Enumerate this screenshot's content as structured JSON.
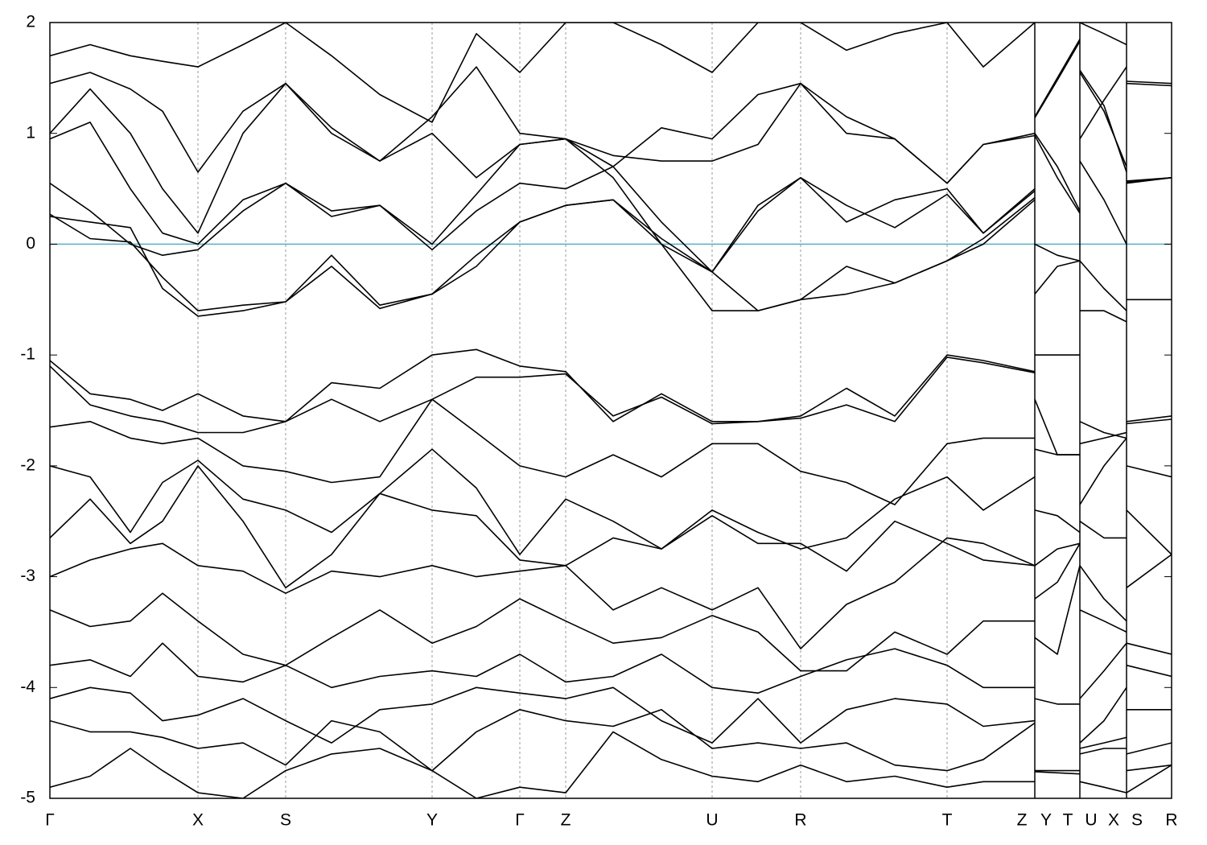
{
  "chart_data": {
    "type": "line",
    "x": [
      0,
      0.5,
      1.0,
      1.4,
      1.84,
      2.4,
      2.93,
      3.5,
      4.1,
      4.75,
      5.3,
      5.84,
      6.41,
      7.0,
      7.6,
      8.23,
      8.8,
      9.33,
      9.9,
      10.5,
      11.15,
      11.6,
      12.24,
      12.24,
      12.24,
      12.52,
      12.8,
      12.8,
      12.8,
      13.1,
      13.38,
      13.38,
      13.38,
      13.94
    ],
    "xlim": [
      0,
      13.94
    ],
    "xticks": [
      {
        "value": 0,
        "label": "Γ"
      },
      {
        "value": 1.84,
        "label": "X"
      },
      {
        "value": 2.93,
        "label": "S"
      },
      {
        "value": 4.75,
        "label": "Y"
      },
      {
        "value": 5.84,
        "label": "Γ"
      },
      {
        "value": 6.41,
        "label": "Z"
      },
      {
        "value": 8.23,
        "label": "U"
      },
      {
        "value": 9.33,
        "label": "R"
      },
      {
        "value": 11.15,
        "label": "T"
      },
      {
        "value": 12.08,
        "label": "Z"
      },
      {
        "value": 12.38,
        "label": "Y"
      },
      {
        "value": 12.65,
        "label": "T"
      },
      {
        "value": 12.94,
        "label": "U"
      },
      {
        "value": 13.22,
        "label": "X"
      },
      {
        "value": 13.51,
        "label": "S"
      },
      {
        "value": 13.94,
        "label": "R"
      }
    ],
    "breaks": [
      12.24,
      12.8,
      13.38
    ],
    "ylim": [
      -5,
      2
    ],
    "yticks": [
      2,
      1,
      0,
      -1,
      -2,
      -3,
      -4,
      -5
    ],
    "grid": true,
    "reference_line": {
      "value": 0,
      "color": "#56afc8"
    },
    "series": [
      {
        "color": "#000000",
        "values": [
          0.27,
          0.05,
          0.02,
          -0.3,
          -0.6,
          -0.55,
          -0.52,
          -0.1,
          -0.55,
          -0.45,
          -0.1,
          0.2,
          0.35,
          0.4,
          0.05,
          -0.25,
          -0.6,
          -0.5,
          -0.2,
          -0.35,
          -0.15,
          0.0,
          0.4,
          null,
          0.0,
          -0.1,
          -0.15,
          null,
          -0.6,
          -0.6,
          -0.7,
          null,
          -0.5,
          -0.5
        ]
      },
      {
        "color": "#000000",
        "values": [
          0.25,
          0.2,
          0.15,
          -0.4,
          -0.65,
          -0.6,
          -0.52,
          -0.2,
          -0.58,
          -0.45,
          -0.2,
          0.2,
          0.35,
          0.4,
          0.0,
          -0.6,
          -0.6,
          -0.5,
          -0.45,
          -0.35,
          -0.15,
          0.05,
          0.42,
          null,
          -0.45,
          -0.2,
          -0.15,
          null,
          -0.15,
          -0.4,
          -0.6,
          null,
          0.55,
          0.6
        ]
      },
      {
        "color": "#000000",
        "values": [
          0.55,
          0.3,
          0.0,
          -0.1,
          -0.05,
          0.3,
          0.55,
          0.3,
          0.35,
          -0.05,
          0.3,
          0.55,
          0.5,
          0.7,
          0.2,
          -0.25,
          0.3,
          0.6,
          0.35,
          0.15,
          0.45,
          0.1,
          0.5,
          null,
          0.98,
          0.6,
          0.28,
          null,
          0.75,
          0.4,
          0.0,
          null,
          1.45,
          1.43
        ]
      },
      {
        "color": "#000000",
        "values": [
          0.95,
          1.1,
          0.5,
          0.1,
          0.0,
          0.4,
          0.55,
          0.25,
          0.35,
          0.0,
          0.45,
          0.9,
          0.95,
          0.6,
          0.0,
          -0.25,
          0.35,
          0.6,
          0.2,
          0.4,
          0.5,
          0.1,
          0.48,
          null,
          1.15,
          1.5,
          1.85,
          null,
          0.95,
          1.3,
          1.6,
          null,
          0.57,
          0.6
        ]
      },
      {
        "color": "#000000",
        "values": [
          1.0,
          1.4,
          1.0,
          0.5,
          0.1,
          1.0,
          1.45,
          1.0,
          0.75,
          1.0,
          0.6,
          0.9,
          0.95,
          0.7,
          1.05,
          0.95,
          1.35,
          1.45,
          1.0,
          0.95,
          0.55,
          0.9,
          0.98,
          null,
          1.14,
          1.48,
          1.83,
          null,
          1.55,
          1.2,
          0.7,
          null,
          1.47,
          1.45
        ]
      },
      {
        "color": "#000000",
        "values": [
          1.45,
          1.55,
          1.4,
          1.2,
          0.65,
          1.2,
          1.45,
          1.05,
          0.75,
          1.15,
          1.6,
          1.0,
          0.95,
          0.8,
          0.75,
          0.75,
          0.9,
          1.45,
          1.15,
          0.95,
          0.55,
          0.9,
          1.0,
          null,
          1.0,
          0.7,
          0.3,
          null,
          1.57,
          1.25,
          0.65,
          null,
          0.56,
          0.6
        ]
      },
      {
        "color": "#000000",
        "values": [
          1.7,
          1.8,
          1.7,
          1.65,
          1.6,
          1.8,
          2.0,
          1.7,
          1.35,
          1.1,
          1.9,
          1.55,
          2.0,
          2.0,
          1.8,
          1.55,
          2.0,
          2.0,
          1.75,
          1.9,
          2.0,
          1.6,
          2.0,
          null,
          null,
          null,
          null,
          null,
          2.0,
          1.9,
          1.8,
          null,
          null,
          null
        ]
      },
      {
        "color": "#000000",
        "values": [
          -1.05,
          -1.35,
          -1.4,
          -1.5,
          -1.35,
          -1.55,
          -1.6,
          -1.25,
          -1.3,
          -1.0,
          -0.95,
          -1.1,
          -1.15,
          -1.6,
          -1.35,
          -1.6,
          -1.6,
          -1.55,
          -1.3,
          -1.55,
          -1.0,
          -1.05,
          -1.15,
          null,
          -1.0,
          -1.0,
          -1.0,
          null,
          -1.6,
          -1.7,
          -1.75,
          null,
          -1.62,
          -1.58
        ]
      },
      {
        "color": "#000000",
        "values": [
          -1.1,
          -1.45,
          -1.55,
          -1.6,
          -1.7,
          -1.7,
          -1.6,
          -1.4,
          -1.6,
          -1.4,
          -1.2,
          -1.2,
          -1.17,
          -1.55,
          -1.38,
          -1.62,
          -1.6,
          -1.57,
          -1.45,
          -1.6,
          -1.02,
          -1.07,
          -1.16,
          null,
          -1.4,
          -1.9,
          -1.9,
          null,
          -1.8,
          -1.75,
          -1.7,
          null,
          -1.6,
          -1.55
        ]
      },
      {
        "color": "#000000",
        "values": [
          -1.65,
          -1.6,
          -1.75,
          -1.8,
          -1.75,
          -2.0,
          -2.05,
          -2.15,
          -2.1,
          -1.4,
          -1.7,
          -2.0,
          -2.1,
          -1.9,
          -2.1,
          -1.8,
          -1.8,
          -2.05,
          -2.15,
          -2.35,
          -1.8,
          -1.75,
          -1.75,
          null,
          -1.85,
          -1.9,
          -1.9,
          null,
          -2.35,
          -2.0,
          -1.75,
          null,
          -2.0,
          -2.1
        ]
      },
      {
        "color": "#000000",
        "values": [
          -2.0,
          -2.1,
          -2.6,
          -2.15,
          -1.95,
          -2.3,
          -2.4,
          -2.6,
          -2.25,
          -1.85,
          -2.2,
          -2.8,
          -2.3,
          -2.5,
          -2.75,
          -2.4,
          -2.6,
          -2.75,
          -2.65,
          -2.3,
          -2.1,
          -2.4,
          -2.1,
          null,
          -2.4,
          -2.45,
          -2.6,
          null,
          -2.5,
          -2.65,
          -2.65,
          null,
          -2.4,
          -2.8
        ]
      },
      {
        "color": "#000000",
        "values": [
          -2.65,
          -2.3,
          -2.7,
          -2.5,
          -2.0,
          -2.5,
          -3.1,
          -2.8,
          -2.25,
          -2.4,
          -2.45,
          -2.85,
          -2.9,
          -2.65,
          -2.75,
          -2.45,
          -2.7,
          -2.7,
          -2.95,
          -2.5,
          -2.7,
          -2.85,
          -2.9,
          null,
          -2.9,
          -2.75,
          -2.7,
          null,
          -2.9,
          -3.2,
          -3.4,
          null,
          -3.1,
          -2.8
        ]
      },
      {
        "color": "#000000",
        "values": [
          -3.0,
          -2.85,
          -2.75,
          -2.7,
          -2.9,
          -2.95,
          -3.15,
          -2.95,
          -3.0,
          -2.9,
          -3.0,
          -2.95,
          -2.9,
          -3.3,
          -3.1,
          -3.3,
          -3.1,
          -3.65,
          -3.25,
          -3.05,
          -2.65,
          -2.7,
          -2.9,
          null,
          -3.2,
          -3.05,
          -2.7,
          null,
          -3.3,
          -3.4,
          -3.5,
          null,
          -3.6,
          -3.7
        ]
      },
      {
        "color": "#000000",
        "values": [
          -3.3,
          -3.45,
          -3.4,
          -3.15,
          -3.4,
          -3.7,
          -3.8,
          -3.55,
          -3.3,
          -3.6,
          -3.45,
          -3.2,
          -3.4,
          -3.6,
          -3.55,
          -3.35,
          -3.5,
          -3.85,
          -3.85,
          -3.5,
          -3.7,
          -3.4,
          -3.4,
          null,
          -3.55,
          -3.7,
          -2.9,
          null,
          -4.1,
          -3.85,
          -3.6,
          null,
          -3.8,
          -3.9
        ]
      },
      {
        "color": "#000000",
        "values": [
          -3.8,
          -3.75,
          -3.9,
          -3.6,
          -3.9,
          -3.95,
          -3.8,
          -4.0,
          -3.9,
          -3.85,
          -3.9,
          -3.7,
          -3.95,
          -3.9,
          -3.7,
          -4.0,
          -4.05,
          -3.9,
          -3.75,
          -3.65,
          -3.8,
          -4.0,
          -4.0,
          null,
          -4.1,
          -4.15,
          -4.15,
          null,
          -4.5,
          -4.3,
          -4.0,
          null,
          -4.2,
          -4.2
        ]
      },
      {
        "color": "#000000",
        "values": [
          -4.1,
          -4.0,
          -4.05,
          -4.3,
          -4.25,
          -4.1,
          -4.3,
          -4.5,
          -4.2,
          -4.15,
          -4.0,
          -4.05,
          -4.1,
          -4.0,
          -4.3,
          -4.5,
          -4.1,
          -4.5,
          -4.2,
          -4.1,
          -4.15,
          -4.35,
          -4.3,
          null,
          -4.75,
          -4.75,
          -4.75,
          null,
          -4.55,
          -4.5,
          -4.45,
          null,
          -4.6,
          -4.5
        ]
      },
      {
        "color": "#000000",
        "values": [
          -4.3,
          -4.4,
          -4.4,
          -4.45,
          -4.55,
          -4.5,
          -4.7,
          -4.3,
          -4.4,
          -4.75,
          -4.4,
          -4.2,
          -4.3,
          -4.35,
          -4.2,
          -4.55,
          -4.5,
          -4.55,
          -4.5,
          -4.7,
          -4.75,
          -4.65,
          -4.32,
          null,
          -4.76,
          -4.77,
          -4.78,
          null,
          -4.85,
          -4.9,
          -4.95,
          null,
          -4.75,
          -4.7
        ]
      },
      {
        "color": "#000000",
        "values": [
          -4.9,
          -4.8,
          -4.55,
          -4.75,
          -4.95,
          -5.0,
          -4.75,
          -4.6,
          -4.55,
          -4.75,
          -5.0,
          -4.9,
          -4.95,
          -4.4,
          -4.65,
          -4.8,
          -4.85,
          -4.7,
          -4.85,
          -4.8,
          -4.9,
          -4.85,
          -4.85,
          null,
          null,
          null,
          null,
          null,
          -4.6,
          -4.55,
          -4.55,
          null,
          -4.95,
          -4.7
        ]
      }
    ]
  }
}
